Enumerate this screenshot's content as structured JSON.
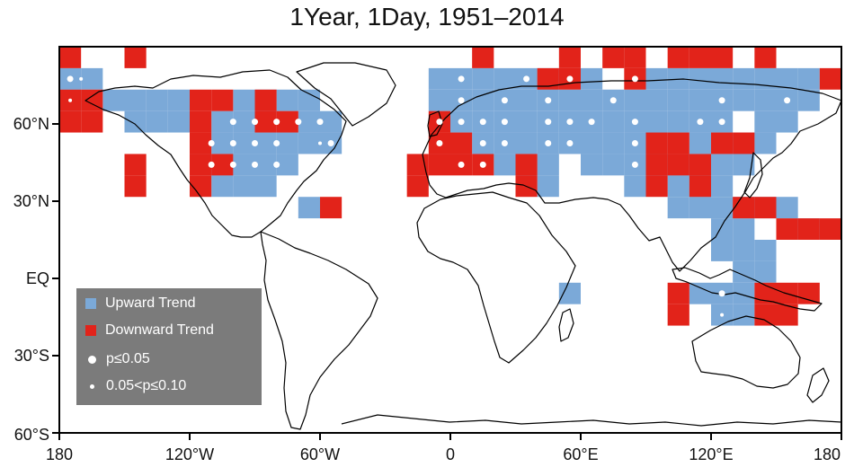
{
  "title": "1Year, 1Day, 1951–2014",
  "colors": {
    "upward": "#7ba9d8",
    "downward": "#e2231a",
    "land_outline": "#000000",
    "legend_bg": "#7b7b7b"
  },
  "x_ticks": [
    "180",
    "120°W",
    "60°W",
    "0",
    "60°E",
    "120°E",
    "180"
  ],
  "y_ticks": [
    "60°N",
    "30°N",
    "EQ",
    "30°S",
    "60°S"
  ],
  "legend": {
    "upward": "Upward Trend",
    "downward": "Downward Trend",
    "p1": "p≤0.05",
    "p2": "0.05<p≤0.10"
  },
  "grid": {
    "lon_step": 10,
    "lat_step": 10,
    "up": [
      [
        -180,
        70
      ],
      [
        -170,
        70
      ],
      [
        -180,
        60
      ],
      [
        -160,
        60
      ],
      [
        -150,
        60
      ],
      [
        -140,
        60
      ],
      [
        -130,
        60
      ],
      [
        -100,
        60
      ],
      [
        -90,
        60
      ],
      [
        -80,
        60
      ],
      [
        -70,
        60
      ],
      [
        -150,
        50
      ],
      [
        -140,
        50
      ],
      [
        -130,
        50
      ],
      [
        -110,
        50
      ],
      [
        -100,
        50
      ],
      [
        -90,
        50
      ],
      [
        -70,
        50
      ],
      [
        -60,
        50
      ],
      [
        -110,
        40
      ],
      [
        -100,
        40
      ],
      [
        -90,
        40
      ],
      [
        -80,
        40
      ],
      [
        -70,
        40
      ],
      [
        -60,
        40
      ],
      [
        -110,
        30
      ],
      [
        -100,
        30
      ],
      [
        -90,
        30
      ],
      [
        -80,
        30
      ],
      [
        -110,
        20
      ],
      [
        -100,
        20
      ],
      [
        -90,
        20
      ],
      [
        -70,
        10
      ],
      [
        -10,
        70
      ],
      [
        0,
        70
      ],
      [
        10,
        70
      ],
      [
        20,
        70
      ],
      [
        30,
        70
      ],
      [
        40,
        70
      ],
      [
        60,
        70
      ],
      [
        90,
        70
      ],
      [
        100,
        70
      ],
      [
        110,
        70
      ],
      [
        120,
        70
      ],
      [
        130,
        70
      ],
      [
        140,
        70
      ],
      [
        150,
        70
      ],
      [
        160,
        70
      ],
      [
        -10,
        60
      ],
      [
        0,
        60
      ],
      [
        10,
        60
      ],
      [
        20,
        60
      ],
      [
        30,
        60
      ],
      [
        40,
        60
      ],
      [
        50,
        60
      ],
      [
        60,
        60
      ],
      [
        70,
        60
      ],
      [
        80,
        60
      ],
      [
        90,
        60
      ],
      [
        100,
        60
      ],
      [
        110,
        60
      ],
      [
        120,
        60
      ],
      [
        130,
        60
      ],
      [
        140,
        60
      ],
      [
        150,
        60
      ],
      [
        160,
        60
      ],
      [
        0,
        50
      ],
      [
        10,
        50
      ],
      [
        20,
        50
      ],
      [
        30,
        50
      ],
      [
        40,
        50
      ],
      [
        50,
        50
      ],
      [
        60,
        50
      ],
      [
        70,
        50
      ],
      [
        80,
        50
      ],
      [
        90,
        50
      ],
      [
        100,
        50
      ],
      [
        110,
        50
      ],
      [
        120,
        50
      ],
      [
        140,
        50
      ],
      [
        150,
        50
      ],
      [
        10,
        40
      ],
      [
        20,
        40
      ],
      [
        30,
        40
      ],
      [
        40,
        40
      ],
      [
        50,
        40
      ],
      [
        60,
        40
      ],
      [
        70,
        40
      ],
      [
        80,
        40
      ],
      [
        90,
        40
      ],
      [
        110,
        40
      ],
      [
        130,
        40
      ],
      [
        140,
        40
      ],
      [
        20,
        30
      ],
      [
        30,
        30
      ],
      [
        40,
        30
      ],
      [
        60,
        30
      ],
      [
        70,
        30
      ],
      [
        80,
        30
      ],
      [
        90,
        30
      ],
      [
        100,
        30
      ],
      [
        110,
        30
      ],
      [
        120,
        30
      ],
      [
        130,
        30
      ],
      [
        40,
        20
      ],
      [
        80,
        20
      ],
      [
        100,
        20
      ],
      [
        110,
        20
      ],
      [
        120,
        20
      ],
      [
        100,
        10
      ],
      [
        110,
        10
      ],
      [
        120,
        10
      ],
      [
        130,
        10
      ],
      [
        140,
        10
      ],
      [
        150,
        10
      ],
      [
        120,
        0
      ],
      [
        130,
        0
      ],
      [
        160,
        0
      ],
      [
        120,
        -10
      ],
      [
        130,
        -10
      ],
      [
        140,
        -10
      ],
      [
        130,
        -20
      ],
      [
        140,
        -20
      ],
      [
        110,
        -30
      ],
      [
        120,
        -30
      ],
      [
        130,
        -30
      ],
      [
        120,
        -40
      ],
      [
        130,
        -40
      ],
      [
        50,
        -30
      ]
    ],
    "down": [
      [
        -180,
        80
      ],
      [
        -150,
        80
      ],
      [
        -180,
        60
      ],
      [
        -170,
        60
      ],
      [
        -170,
        50
      ],
      [
        -180,
        50
      ],
      [
        -120,
        60
      ],
      [
        -120,
        50
      ],
      [
        -110,
        60
      ],
      [
        -90,
        60
      ],
      [
        -90,
        50
      ],
      [
        -80,
        50
      ],
      [
        -120,
        40
      ],
      [
        -120,
        30
      ],
      [
        -110,
        30
      ],
      [
        -120,
        20
      ],
      [
        -150,
        20
      ],
      [
        -150,
        30
      ],
      [
        -60,
        10
      ],
      [
        -10,
        50
      ],
      [
        -10,
        40
      ],
      [
        0,
        40
      ],
      [
        -10,
        30
      ],
      [
        0,
        30
      ],
      [
        10,
        30
      ],
      [
        -20,
        30
      ],
      [
        -20,
        20
      ],
      [
        30,
        20
      ],
      [
        30,
        30
      ],
      [
        10,
        80
      ],
      [
        40,
        70
      ],
      [
        50,
        70
      ],
      [
        50,
        80
      ],
      [
        70,
        80
      ],
      [
        80,
        80
      ],
      [
        80,
        70
      ],
      [
        100,
        80
      ],
      [
        110,
        80
      ],
      [
        120,
        80
      ],
      [
        140,
        80
      ],
      [
        170,
        70
      ],
      [
        90,
        40
      ],
      [
        100,
        40
      ],
      [
        120,
        40
      ],
      [
        130,
        40
      ],
      [
        90,
        30
      ],
      [
        90,
        20
      ],
      [
        100,
        30
      ],
      [
        110,
        30
      ],
      [
        110,
        20
      ],
      [
        130,
        10
      ],
      [
        140,
        10
      ],
      [
        150,
        0
      ],
      [
        160,
        0
      ],
      [
        170,
        0
      ],
      [
        100,
        -30
      ],
      [
        100,
        -40
      ],
      [
        140,
        -30
      ],
      [
        140,
        -40
      ],
      [
        150,
        -30
      ],
      [
        150,
        -40
      ],
      [
        160,
        -30
      ]
    ],
    "dots_big": [
      [
        -175,
        75
      ],
      [
        -100,
        55
      ],
      [
        -90,
        55
      ],
      [
        -80,
        55
      ],
      [
        -70,
        55
      ],
      [
        -60,
        55
      ],
      [
        -110,
        45
      ],
      [
        -100,
        45
      ],
      [
        -90,
        45
      ],
      [
        -80,
        45
      ],
      [
        -55,
        45
      ],
      [
        -110,
        35
      ],
      [
        -100,
        35
      ],
      [
        -90,
        35
      ],
      [
        -80,
        35
      ],
      [
        5,
        75
      ],
      [
        35,
        75
      ],
      [
        55,
        75
      ],
      [
        85,
        75
      ],
      [
        5,
        65
      ],
      [
        25,
        65
      ],
      [
        45,
        65
      ],
      [
        75,
        65
      ],
      [
        125,
        65
      ],
      [
        155,
        65
      ],
      [
        -5,
        55
      ],
      [
        5,
        55
      ],
      [
        15,
        55
      ],
      [
        25,
        55
      ],
      [
        45,
        55
      ],
      [
        55,
        55
      ],
      [
        65,
        55
      ],
      [
        85,
        55
      ],
      [
        115,
        55
      ],
      [
        125,
        55
      ],
      [
        -5,
        45
      ],
      [
        15,
        45
      ],
      [
        25,
        45
      ],
      [
        45,
        45
      ],
      [
        55,
        45
      ],
      [
        85,
        45
      ],
      [
        5,
        35
      ],
      [
        15,
        35
      ],
      [
        85,
        35
      ],
      [
        125,
        -25
      ],
      [
        145,
        -45
      ]
    ],
    "dots_small": [
      [
        -175,
        65
      ],
      [
        -170,
        75
      ],
      [
        5,
        65
      ],
      [
        -60,
        45
      ],
      [
        125,
        -35
      ]
    ]
  }
}
